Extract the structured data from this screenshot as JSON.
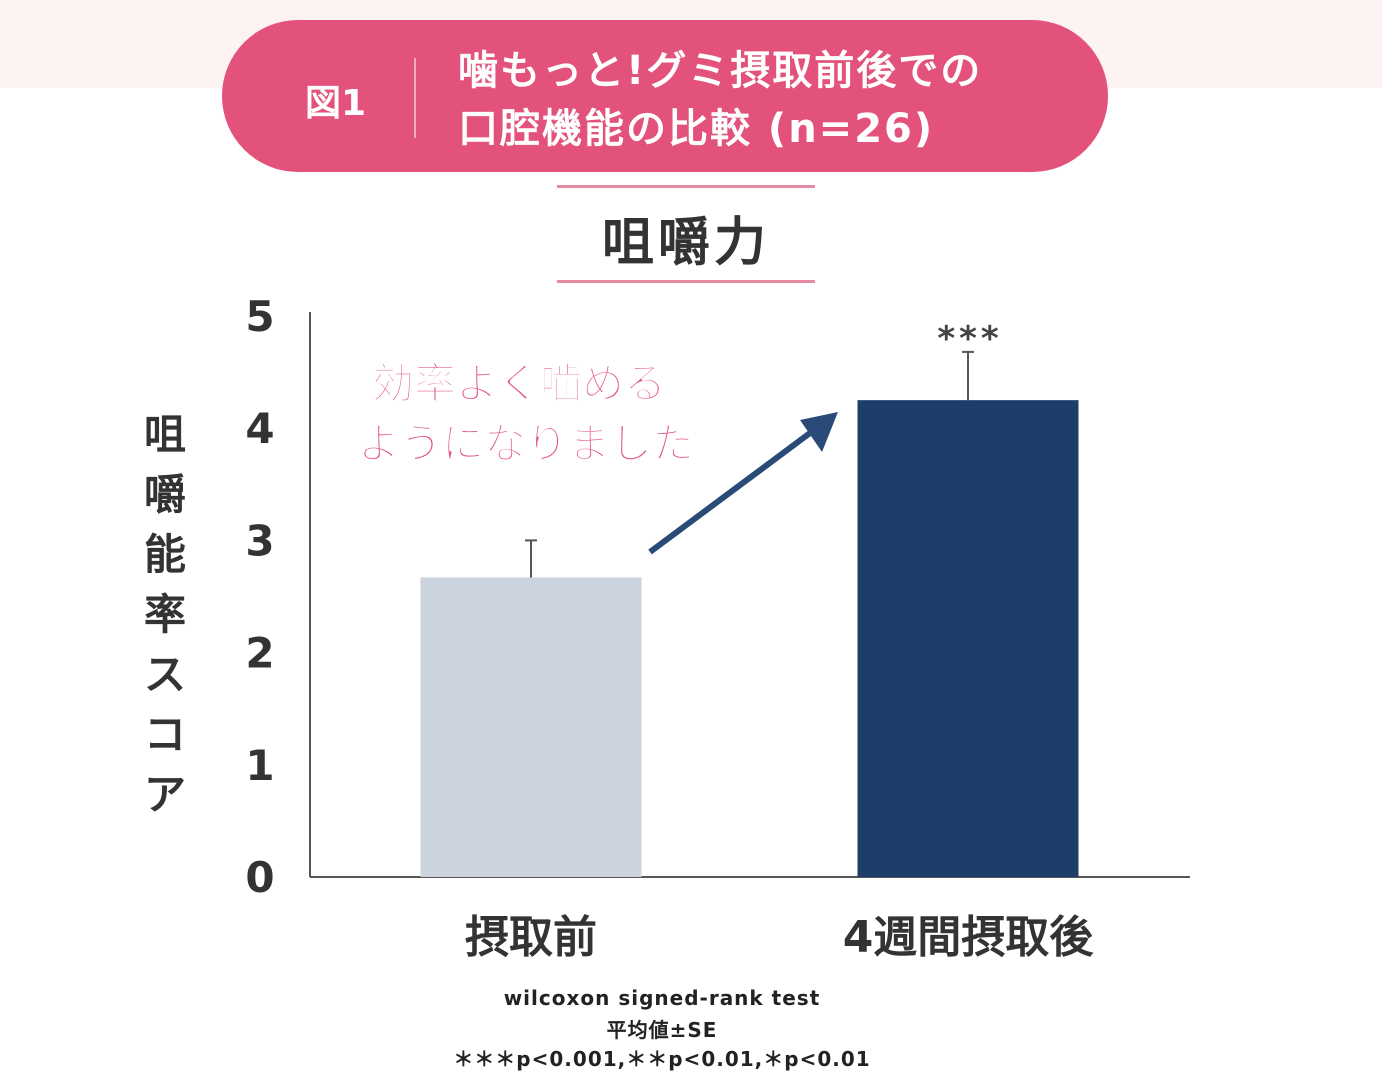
{
  "header": {
    "figure_label": "図1",
    "title_line1": "噛もっと!グミ摂取前後での",
    "title_line2": "口腔機能の比較 (n=26)"
  },
  "chart_data": {
    "type": "bar",
    "title": "咀嚼力",
    "categories": [
      "摂取前",
      "4週間摂取後"
    ],
    "values": [
      2.67,
      4.25
    ],
    "error_se": [
      0.33,
      0.43
    ],
    "significance": [
      "",
      "***"
    ],
    "xlabel": "",
    "ylabel": "咀嚼能率スコア",
    "ylim": [
      0,
      5
    ],
    "yticks": [
      "0",
      "1",
      "2",
      "3",
      "4",
      "5"
    ],
    "grid": false,
    "bar_colors": [
      "#cbd3de",
      "#1f3d6b"
    ],
    "annotation_line1": "効率よく噛める",
    "annotation_line2": "ようになりました",
    "annotation_color": "#e2527b"
  },
  "footnotes": {
    "test": "wilcoxon signed-rank test",
    "stat": "平均値±SE",
    "pvalues": "＊＊＊p<0.001,＊＊p<0.01,＊p<0.01"
  }
}
